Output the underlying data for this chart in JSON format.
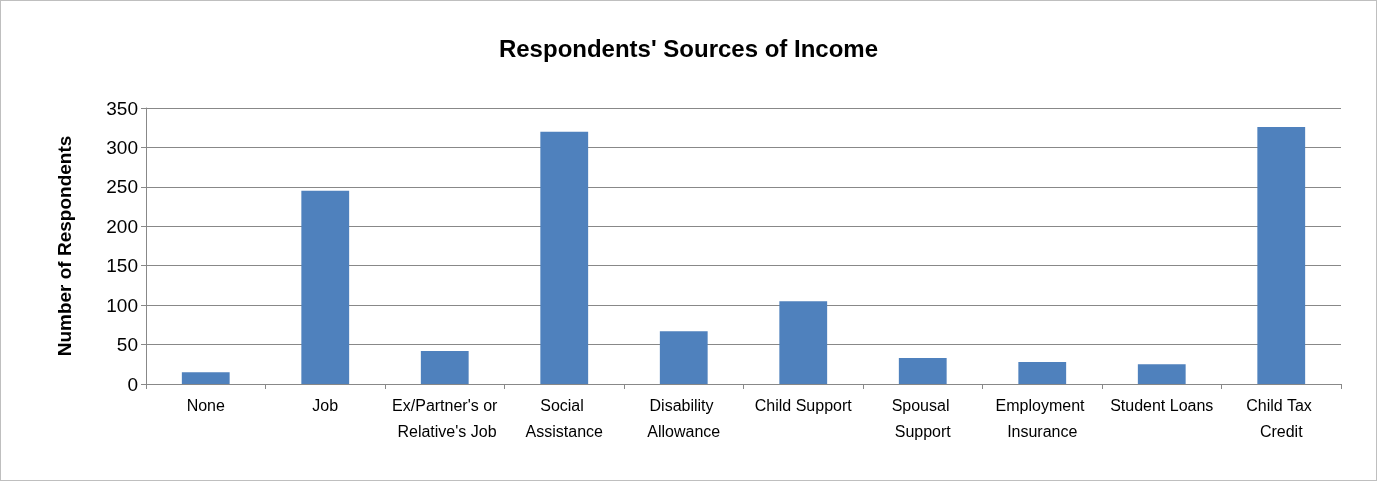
{
  "chart_data": {
    "type": "bar",
    "title": "Respondents' Sources of Income",
    "ylabel": "Number of Respondents",
    "categories": [
      "None",
      "Job",
      "Ex/Partner's or Relative's Job",
      "Social Assistance",
      "Disability Allowance",
      "Child Support",
      "Spousal Support",
      "Employment Insurance",
      "Student Loans",
      "Child Tax Credit"
    ],
    "values": [
      15,
      245,
      42,
      320,
      67,
      105,
      33,
      28,
      25,
      326
    ],
    "color": "#4f81bd",
    "ylim": [
      0,
      350
    ],
    "yticks": [
      0,
      50,
      100,
      150,
      200,
      250,
      300,
      350
    ],
    "grid": "y"
  }
}
